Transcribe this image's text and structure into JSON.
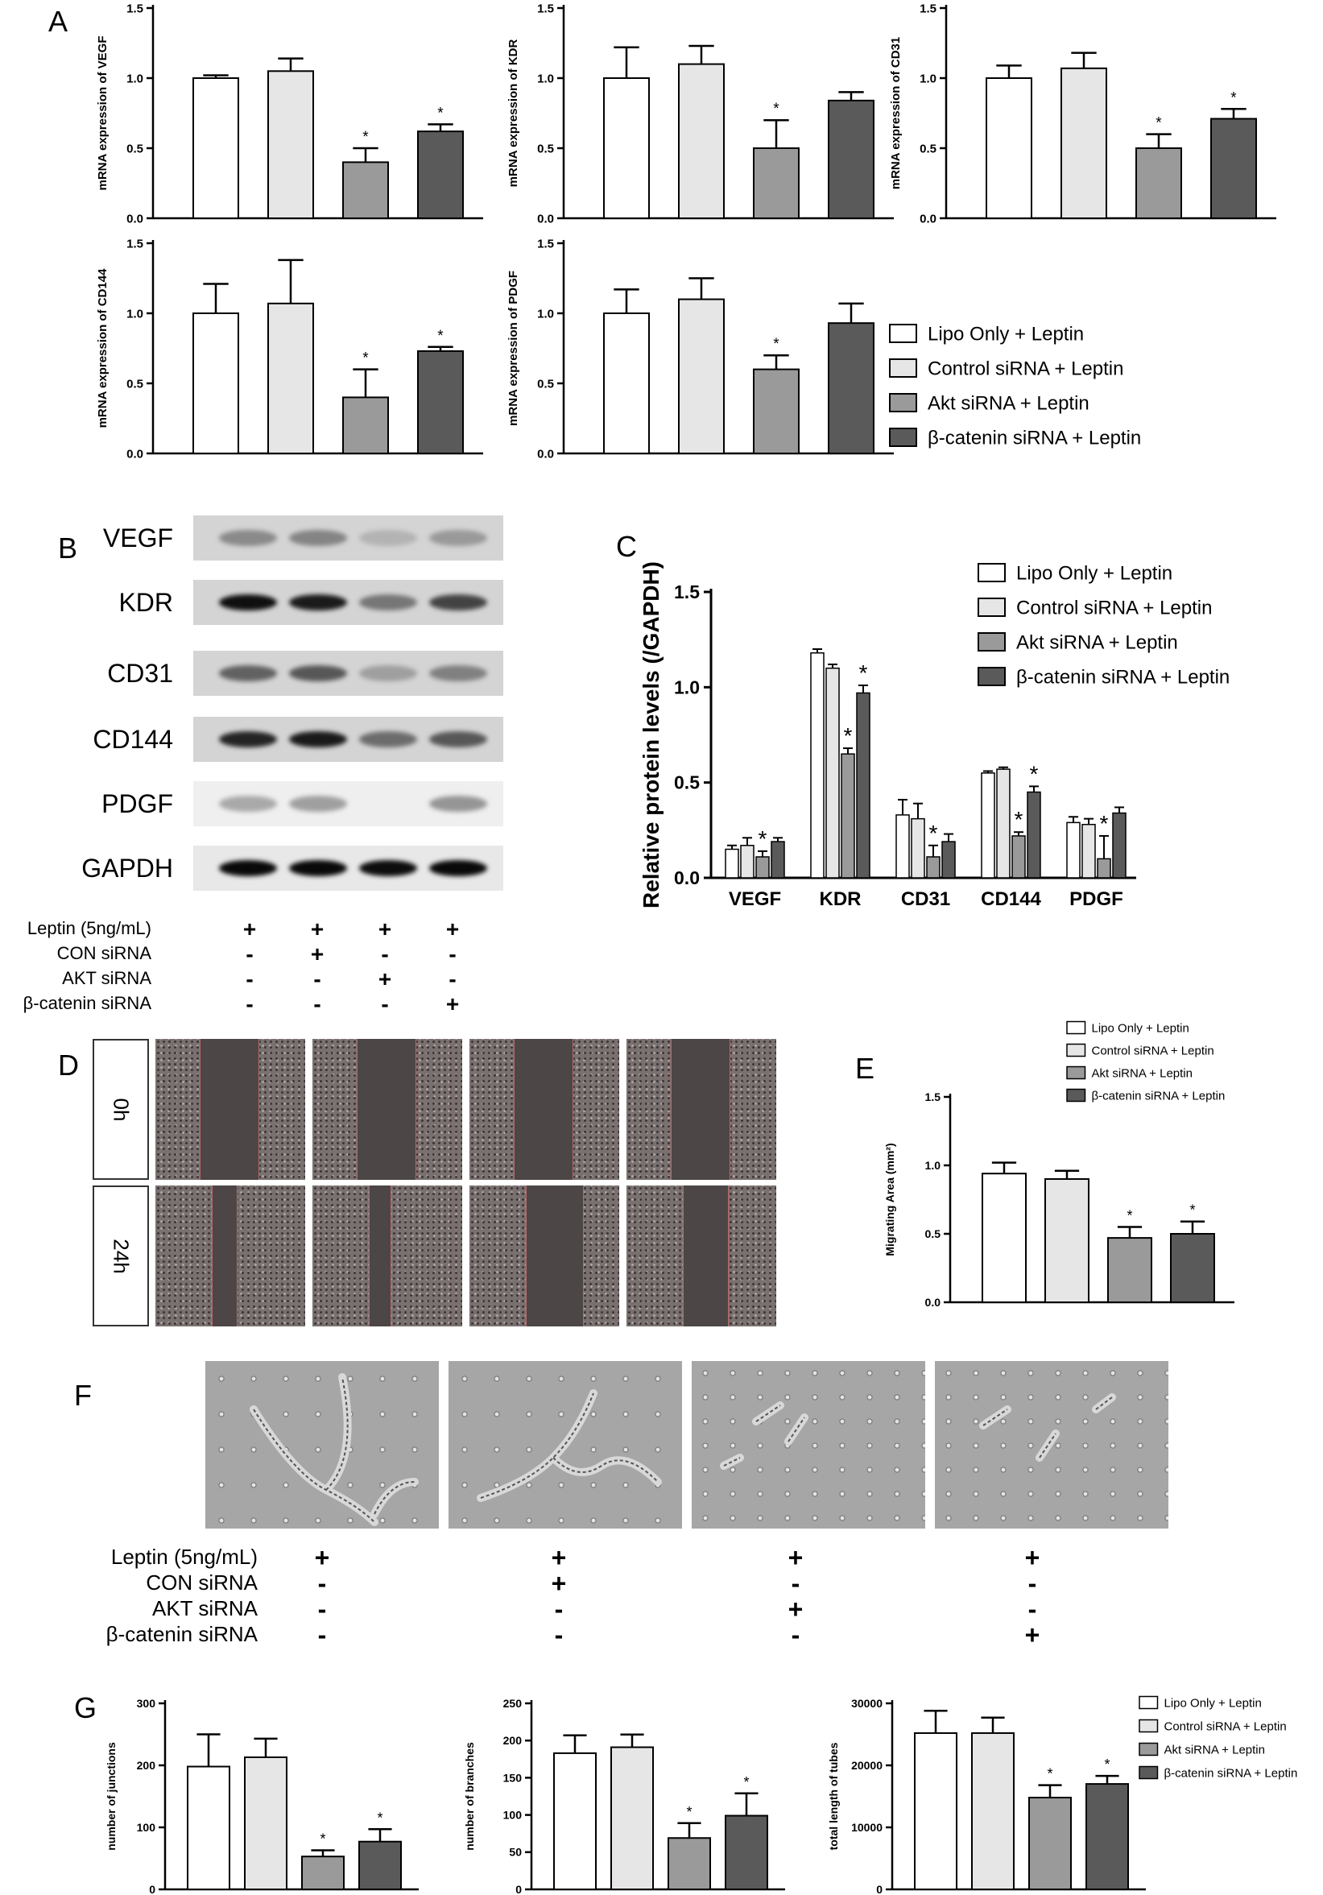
{
  "panel_letters": {
    "a": "A",
    "b": "B",
    "c": "C",
    "d": "D",
    "e": "E",
    "f": "F",
    "g": "G"
  },
  "legend": [
    "Lipo Only + Leptin",
    "Control siRNA + Leptin",
    "Akt siRNA + Leptin",
    "β-catenin siRNA + Leptin"
  ],
  "colors": {
    "lipo": "#ffffff",
    "control": "#e6e6e6",
    "akt": "#9a9a9a",
    "bcat": "#5a5a5a",
    "axis": "#000000"
  },
  "western_blot": {
    "bands": [
      {
        "name": "VEGF",
        "intensities": [
          0.35,
          0.38,
          0.15,
          0.28
        ]
      },
      {
        "name": "KDR",
        "intensities": [
          0.95,
          0.9,
          0.45,
          0.7
        ]
      },
      {
        "name": "CD31",
        "intensities": [
          0.55,
          0.6,
          0.25,
          0.4
        ]
      },
      {
        "name": "CD144",
        "intensities": [
          0.85,
          0.9,
          0.5,
          0.6
        ]
      },
      {
        "name": "PDGF",
        "intensities": [
          0.2,
          0.25,
          0.0,
          0.3
        ]
      },
      {
        "name": "GAPDH",
        "intensities": [
          0.98,
          0.98,
          0.96,
          0.98
        ]
      }
    ]
  },
  "conditions_b": {
    "rows": [
      {
        "label": "Leptin (5ng/mL)",
        "values": [
          "+",
          "+",
          "+",
          "+"
        ]
      },
      {
        "label": "CON siRNA",
        "values": [
          "-",
          "+",
          "-",
          "-"
        ]
      },
      {
        "label": "AKT siRNA",
        "values": [
          "-",
          "-",
          "+",
          "-"
        ]
      },
      {
        "label": "β-catenin  siRNA",
        "values": [
          "-",
          "-",
          "-",
          "+"
        ]
      }
    ]
  },
  "conditions_f": {
    "rows": [
      {
        "label": "Leptin (5ng/mL)",
        "values": [
          "+",
          "+",
          "+",
          "+"
        ]
      },
      {
        "label": "CON siRNA",
        "values": [
          "-",
          "+",
          "-",
          "-"
        ]
      },
      {
        "label": "AKT siRNA",
        "values": [
          "-",
          "-",
          "+",
          "-"
        ]
      },
      {
        "label": "β-catenin  siRNA",
        "values": [
          "-",
          "-",
          "-",
          "+"
        ]
      }
    ]
  },
  "scratch": {
    "rows": [
      "0h",
      "24h"
    ]
  },
  "chart_data": [
    {
      "id": "A1",
      "type": "bar",
      "ylabel": "mRNA expression of VEGF",
      "ylim": [
        0,
        1.5
      ],
      "ticks": [
        "0.0",
        "0.5",
        "1.0",
        "1.5"
      ],
      "categories": [
        "Lipo Only + Leptin",
        "Control siRNA + Leptin",
        "Akt siRNA + Leptin",
        "β-catenin siRNA + Leptin"
      ],
      "values": [
        1.0,
        1.05,
        0.4,
        0.62
      ],
      "errors": [
        0.02,
        0.09,
        0.1,
        0.05
      ],
      "sig": [
        "",
        "",
        "*",
        "*"
      ]
    },
    {
      "id": "A2",
      "type": "bar",
      "ylabel": "mRNA expression of KDR",
      "ylim": [
        0,
        1.5
      ],
      "ticks": [
        "0.0",
        "0.5",
        "1.0",
        "1.5"
      ],
      "categories": [
        "Lipo Only + Leptin",
        "Control siRNA + Leptin",
        "Akt siRNA + Leptin",
        "β-catenin siRNA + Leptin"
      ],
      "values": [
        1.0,
        1.1,
        0.5,
        0.84
      ],
      "errors": [
        0.22,
        0.13,
        0.2,
        0.06
      ],
      "sig": [
        "",
        "",
        "*",
        ""
      ]
    },
    {
      "id": "A3",
      "type": "bar",
      "ylabel": "mRNA expression of CD31",
      "ylim": [
        0,
        1.5
      ],
      "ticks": [
        "0.0",
        "0.5",
        "1.0",
        "1.5"
      ],
      "categories": [
        "Lipo Only + Leptin",
        "Control siRNA + Leptin",
        "Akt siRNA + Leptin",
        "β-catenin siRNA + Leptin"
      ],
      "values": [
        1.0,
        1.07,
        0.5,
        0.71
      ],
      "errors": [
        0.09,
        0.11,
        0.1,
        0.07
      ],
      "sig": [
        "",
        "",
        "*",
        "*"
      ]
    },
    {
      "id": "A4",
      "type": "bar",
      "ylabel": "mRNA expression of CD144",
      "ylim": [
        0,
        1.5
      ],
      "ticks": [
        "0.0",
        "0.5",
        "1.0",
        "1.5"
      ],
      "categories": [
        "Lipo Only + Leptin",
        "Control siRNA + Leptin",
        "Akt siRNA + Leptin",
        "β-catenin siRNA + Leptin"
      ],
      "values": [
        1.0,
        1.07,
        0.4,
        0.73
      ],
      "errors": [
        0.21,
        0.31,
        0.2,
        0.03
      ],
      "sig": [
        "",
        "",
        "*",
        "*"
      ]
    },
    {
      "id": "A5",
      "type": "bar",
      "ylabel": "mRNA expression of PDGF",
      "ylim": [
        0,
        1.5
      ],
      "ticks": [
        "0.0",
        "0.5",
        "1.0",
        "1.5"
      ],
      "categories": [
        "Lipo Only + Leptin",
        "Control siRNA + Leptin",
        "Akt siRNA + Leptin",
        "β-catenin siRNA + Leptin"
      ],
      "values": [
        1.0,
        1.1,
        0.6,
        0.93
      ],
      "errors": [
        0.17,
        0.15,
        0.1,
        0.14
      ],
      "sig": [
        "",
        "",
        "*",
        ""
      ]
    },
    {
      "id": "C",
      "type": "bar",
      "ylabel": "Relative protein levels (/GAPDH)",
      "ylim": [
        0,
        1.5
      ],
      "ticks": [
        "0.0",
        "0.5",
        "1.0",
        "1.5"
      ],
      "categories": [
        "VEGF",
        "KDR",
        "CD31",
        "CD144",
        "PDGF"
      ],
      "series": [
        {
          "name": "Lipo Only + Leptin",
          "values": [
            0.15,
            1.18,
            0.33,
            0.55,
            0.29
          ],
          "errors": [
            0.02,
            0.02,
            0.08,
            0.01,
            0.03
          ]
        },
        {
          "name": "Control siRNA + Leptin",
          "values": [
            0.17,
            1.1,
            0.31,
            0.57,
            0.28
          ],
          "errors": [
            0.04,
            0.02,
            0.08,
            0.01,
            0.03
          ]
        },
        {
          "name": "Akt siRNA + Leptin",
          "values": [
            0.11,
            0.65,
            0.11,
            0.22,
            0.1
          ],
          "errors": [
            0.03,
            0.03,
            0.06,
            0.02,
            0.12
          ]
        },
        {
          "name": "β-catenin siRNA + Leptin",
          "values": [
            0.19,
            0.97,
            0.19,
            0.45,
            0.34
          ],
          "errors": [
            0.02,
            0.04,
            0.04,
            0.03,
            0.03
          ]
        }
      ],
      "sig": [
        [
          "",
          "",
          "*",
          ""
        ],
        [
          "",
          "",
          "*",
          "*"
        ],
        [
          "",
          "",
          "*",
          ""
        ],
        [
          "",
          "",
          "*",
          "*"
        ],
        [
          "",
          "",
          "*",
          ""
        ]
      ]
    },
    {
      "id": "E",
      "type": "bar",
      "ylabel": "Migrating Area (mm²)",
      "ylim": [
        0,
        1.5
      ],
      "ticks": [
        "0.0",
        "0.5",
        "1.0",
        "1.5"
      ],
      "categories": [
        "Lipo Only + Leptin",
        "Control siRNA + Leptin",
        "Akt siRNA + Leptin",
        "β-catenin siRNA + Leptin"
      ],
      "values": [
        0.94,
        0.9,
        0.47,
        0.5
      ],
      "errors": [
        0.08,
        0.06,
        0.08,
        0.09
      ],
      "sig": [
        "",
        "",
        "*",
        "*"
      ]
    },
    {
      "id": "G1",
      "type": "bar",
      "ylabel": "number of junctions",
      "ylim": [
        0,
        300
      ],
      "ticks": [
        "0",
        "100",
        "200",
        "300"
      ],
      "categories": [
        "Lipo Only + Leptin",
        "Control siRNA + Leptin",
        "Akt siRNA + Leptin",
        "β-catenin siRNA + Leptin"
      ],
      "values": [
        198,
        213,
        53,
        77
      ],
      "errors": [
        52,
        30,
        10,
        20
      ],
      "sig": [
        "",
        "",
        "*",
        "*"
      ]
    },
    {
      "id": "G2",
      "type": "bar",
      "ylabel": "number of branches",
      "ylim": [
        0,
        250
      ],
      "ticks": [
        "0",
        "50",
        "100",
        "150",
        "200",
        "250"
      ],
      "categories": [
        "Lipo Only + Leptin",
        "Control siRNA + Leptin",
        "Akt siRNA + Leptin",
        "β-catenin siRNA + Leptin"
      ],
      "values": [
        183,
        191,
        69,
        99
      ],
      "errors": [
        24,
        17,
        20,
        30
      ],
      "sig": [
        "",
        "",
        "*",
        "*"
      ]
    },
    {
      "id": "G3",
      "type": "bar",
      "ylabel": "total length of tubes",
      "ylim": [
        0,
        30000
      ],
      "ticks": [
        "0",
        "10000",
        "20000",
        "30000"
      ],
      "categories": [
        "Lipo Only + Leptin",
        "Control siRNA + Leptin",
        "Akt siRNA + Leptin",
        "β-catenin siRNA + Leptin"
      ],
      "values": [
        25200,
        25200,
        14800,
        17000
      ],
      "errors": [
        3600,
        2500,
        2000,
        1300
      ],
      "sig": [
        "",
        "",
        "*",
        "*"
      ]
    }
  ]
}
